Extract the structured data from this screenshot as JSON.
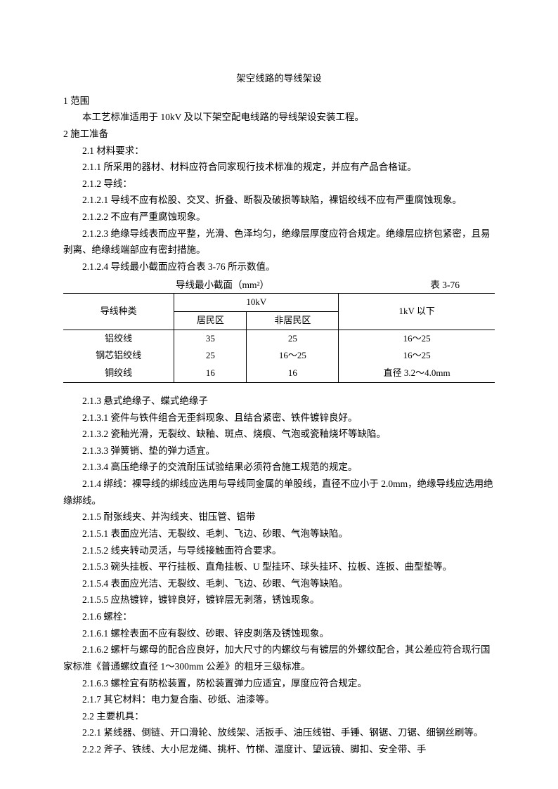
{
  "title": "架空线路的导线架设",
  "s1": {
    "head": "1  范围",
    "p1": "本工艺标准适用于 10kV 及以下架空配电线路的导线架设安装工程。"
  },
  "s2": {
    "head": "2  施工准备",
    "p2_1": "2.1  材料要求：",
    "p2_1_1": "2.1.1  所采用的器材、材料应符合同家现行技术标准的规定，并应有产品合格证。",
    "p2_1_2": "2.1.2  导线：",
    "p2_1_2_1": "2.1.2.1  导线不应有松股、交叉、折叠、断裂及破损等缺陷，裸铝绞线不应有严重腐蚀现象。",
    "p2_1_2_2": "2.1.2.2  不应有严重腐蚀现象。",
    "p2_1_2_3": "2.1.2.3  绝缘导线表而应平整，光滑、色泽均匀，绝缘层厚度应符合规定。绝缘层应挤包紧密，且易剥离、绝缘线端部应有密封措施。",
    "p2_1_2_4": "2.1.2.4  导线最小截面应符合表 3-76 所示数值。",
    "table": {
      "caption_left": "导线最小截面（mm²）",
      "caption_right": "表 3-76",
      "col1_header": "导线种类",
      "col2_header": "10kV",
      "col2a": "居民区",
      "col2b": "非居民区",
      "col3_header": "1kV 以下",
      "rows": [
        {
          "type": "铝绞线",
          "res": "35",
          "nonres": "25",
          "below1kv": "16～25"
        },
        {
          "type": "钢芯铝绞线",
          "res": "25",
          "nonres": "16～25",
          "below1kv": "16～25"
        },
        {
          "type": "铜绞线",
          "res": "16",
          "nonres": "16",
          "below1kv": "直径 3.2～4.0mm"
        }
      ]
    },
    "p2_1_3": "2.1.3  悬式绝缘子、蝶式绝缘子",
    "p2_1_3_1": "2.1.3.1  瓷件与铁件组合无歪斜现象、且结合紧密、铁件镀锌良好。",
    "p2_1_3_2": "2.1.3.2  瓷釉光滑，无裂纹、缺釉、斑点、烧痕、气泡或瓷釉烧坏等缺陷。",
    "p2_1_3_3": "2.1.3.3  弹簧销、垫的弹力适宜。",
    "p2_1_3_4": "2.1.3.4  高压绝缘子的交流耐压试验结果必须符合施工规范的规定。",
    "p2_1_4": "2.1.4  绑线：裸导线的绑线应选用与导线同金属的单股线，直径不应小于 2.0mm，绝缘导线应选用绝缘绑线。",
    "p2_1_5": "2.1.5  耐张线夹、并沟线夹、钳压管、铝带",
    "p2_1_5_1": "2.1.5.1  表面应光洁、无裂纹、毛刺、飞边、砂眼、气泡等缺陷。",
    "p2_1_5_2": "2.1.5.2  线夹转动灵活，与导线接触面符合要求。",
    "p2_1_5_3": "2.1.5.3  碗头挂板、平行挂板、直角挂板、U 型挂环、球头挂环、拉板、连扳、曲型垫等。",
    "p2_1_5_4": "2.1.5.4  表面应光洁、无裂纹、毛刺、飞边、砂眼、气泡等缺陷。",
    "p2_1_5_5": "2.1.5.5  应热镀锌，镀锌良好，镀锌层无剥落，锈蚀现象。",
    "p2_1_6": "2.1.6  螺栓：",
    "p2_1_6_1": "2.1.6.1  螺栓表面不应有裂纹、砂眼、锌皮剥落及锈蚀现象。",
    "p2_1_6_2": "2.1.6.2  螺杆与螺母的配合应良好，加大尺寸的内螺纹与有镀层的外螺纹配合，其公差应符合现行国家标准《普通螺纹直径 1～300mm 公差》的粗牙三级标准。",
    "p2_1_6_3": "2.1.6.3  螺栓宜有防松装置，防松装置弹力应适宜，厚度应符合规定。",
    "p2_1_7": "2.1.7  其它材料：电力复合脂、砂纸、油漆等。",
    "p2_2": "2.2  主要机具：",
    "p2_2_1": "2.2.1  紧线器、倒链、开口滑轮、放线架、活扳手、油压线钳、手锤、钢锯、刀锯、细钢丝刷等。",
    "p2_2_2": "2.2.2  斧子、铁线、大小尼龙绳、挑杆、竹梯、温度计、望远镜、脚扣、安全带、手"
  }
}
